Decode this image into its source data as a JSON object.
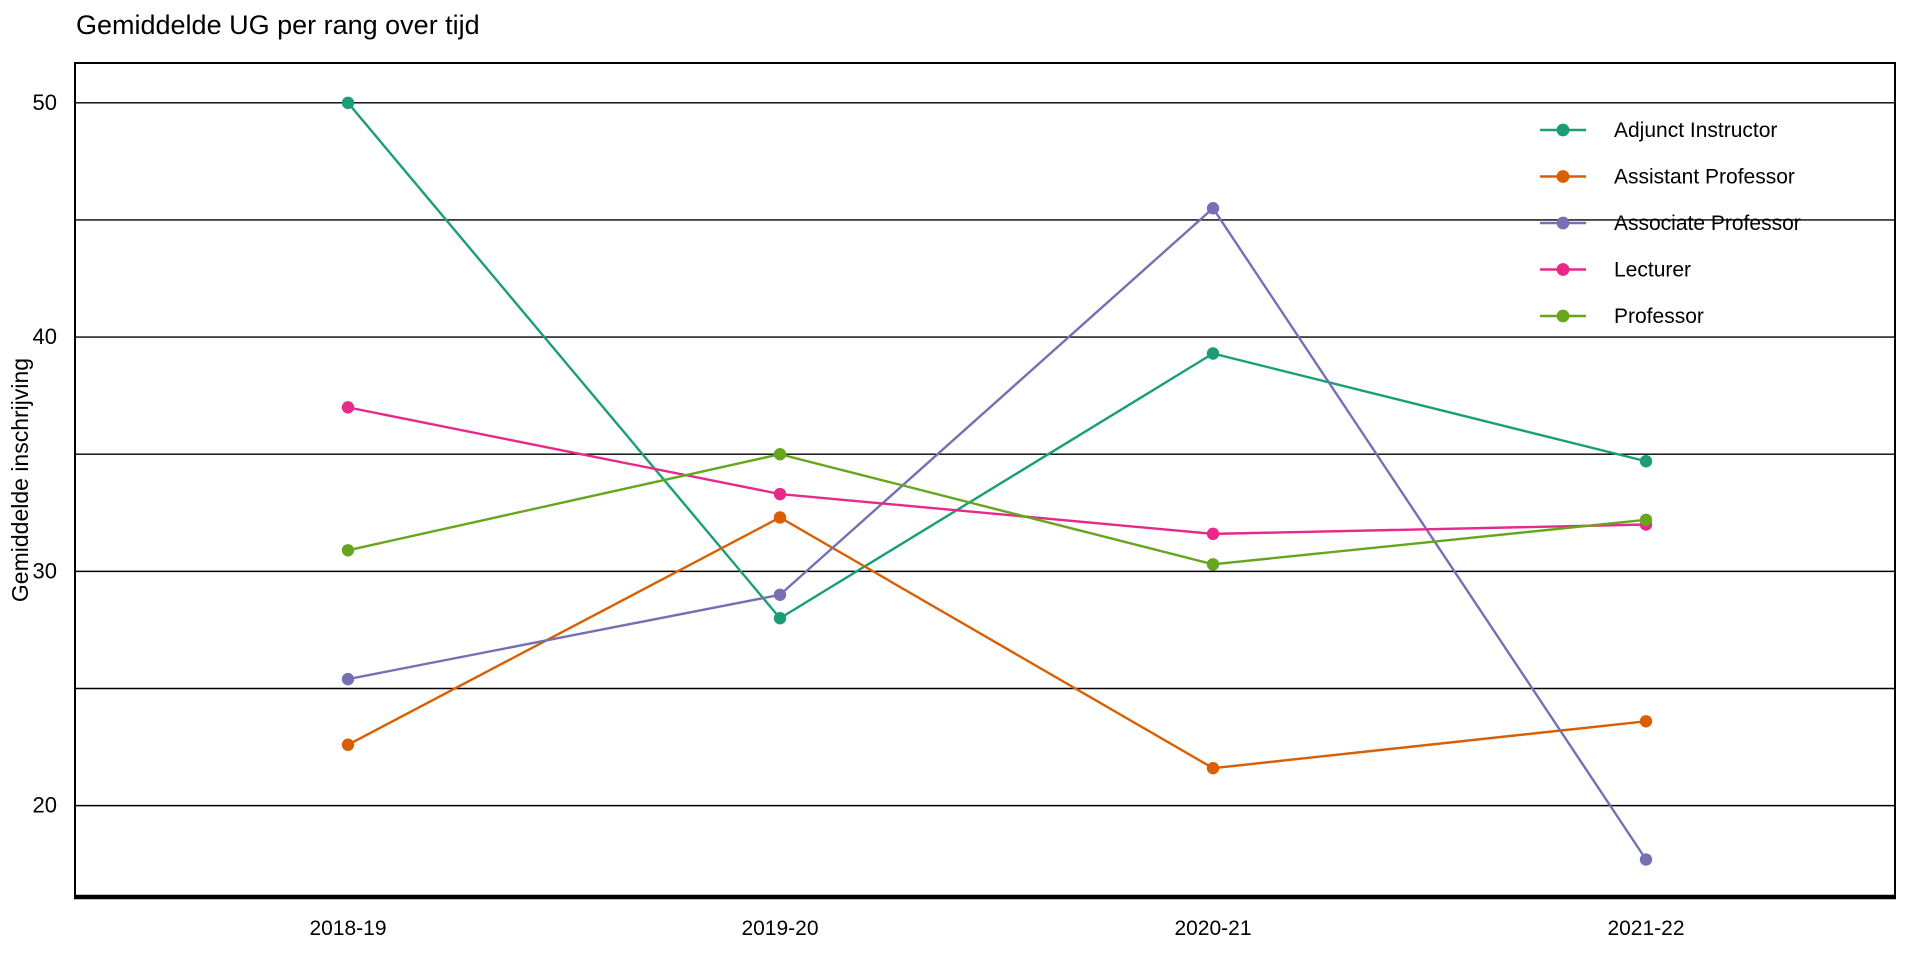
{
  "chart_data": {
    "type": "line",
    "title": "Gemiddelde UG per rang over tijd",
    "xlabel": "",
    "ylabel": "Gemiddelde inschrijving",
    "categories": [
      "2018-19",
      "2019-20",
      "2020-21",
      "2021-22"
    ],
    "series": [
      {
        "name": "Adjunct Instructor",
        "color": "#1B9E77",
        "values": [
          50.0,
          28.0,
          39.3,
          34.7
        ]
      },
      {
        "name": "Assistant Professor",
        "color": "#D95F02",
        "values": [
          22.6,
          32.3,
          21.6,
          23.6
        ]
      },
      {
        "name": "Associate Professor",
        "color": "#7570B3",
        "values": [
          25.4,
          29.0,
          45.5,
          17.7
        ]
      },
      {
        "name": "Lecturer",
        "color": "#E7298A",
        "values": [
          37.0,
          33.3,
          31.6,
          32.0
        ]
      },
      {
        "name": "Professor",
        "color": "#66A61E",
        "values": [
          30.9,
          35.0,
          30.3,
          32.2
        ]
      }
    ],
    "ylim": [
      16.1,
      51.7
    ],
    "y_ticks_labeled": [
      20,
      30,
      40,
      50
    ],
    "gridline_values": [
      20,
      25,
      30,
      35,
      40,
      45,
      50
    ],
    "grid": "horizontal-only, thin black lines, panel fully framed in black",
    "legend_position": "inside top-right, no background box",
    "marker": "filled circle on each data point",
    "colors": {
      "text": "#000000",
      "grid": "#000000",
      "background": "#FFFFFF"
    }
  }
}
